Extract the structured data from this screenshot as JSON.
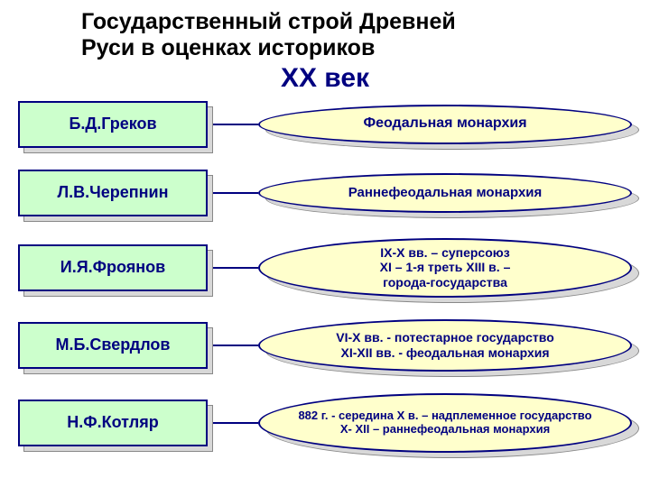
{
  "title_line1": "Государственный строй Древней",
  "title_line2": "Руси  в оценках историков",
  "subtitle": "XX век",
  "colors": {
    "title": "#000000",
    "subtitle": "#000080",
    "name_bg": "#ccffcc",
    "name_border": "#000080",
    "name_text": "#000080",
    "desc_bg": "#ffffcc",
    "desc_border": "#000080",
    "desc_text": "#000080",
    "shadow": "#cccccc"
  },
  "rows": [
    {
      "name": "Б.Д.Греков",
      "desc": "Феодальная монархия",
      "desc_font_size": 16,
      "desc_height": 44
    },
    {
      "name": "Л.В.Черепнин",
      "desc": "Раннефеодальная монархия",
      "desc_font_size": 15,
      "desc_height": 44
    },
    {
      "name": "И.Я.Фроянов",
      "desc": "IX-X вв. – суперсоюз\nXI – 1-я треть XIII в. –\nгорода-государства",
      "desc_font_size": 14,
      "desc_height": 66
    },
    {
      "name": "М.Б.Свердлов",
      "desc": "VI-X вв. - потестарное государство\nXI-XII вв. - феодальная монархия",
      "desc_font_size": 14,
      "desc_height": 58
    },
    {
      "name": "Н.Ф.Котляр",
      "desc": "882 г. - середина X в. – надплеменное государство\nX- XII – раннефеодальная монархия",
      "desc_font_size": 13,
      "desc_height": 66
    }
  ]
}
